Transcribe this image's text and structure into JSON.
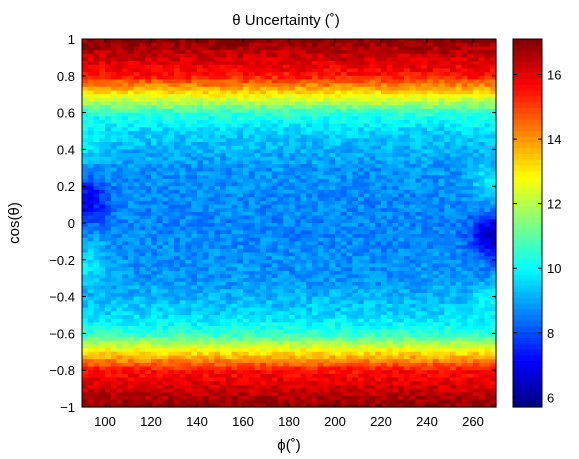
{
  "chart_data": {
    "type": "heatmap",
    "title": "θ Uncertainty (˚)",
    "xlabel": "ϕ(˚)",
    "ylabel": "cos(θ)",
    "xlim": [
      90,
      270
    ],
    "ylim": [
      -1,
      1
    ],
    "x_ticks": [
      "100",
      "120",
      "140",
      "160",
      "180",
      "200",
      "220",
      "240",
      "260"
    ],
    "y_ticks": [
      "1",
      "0.8",
      "0.6",
      "0.4",
      "0.2",
      "0",
      "−0.2",
      "−0.4",
      "−0.6",
      "−0.8",
      "−1"
    ],
    "colorbar": {
      "range": [
        5.7,
        17.1
      ],
      "ticks": [
        "16",
        "14",
        "12",
        "10",
        "8",
        "6"
      ],
      "colormap": "jet"
    },
    "grid_x_bins": 72,
    "grid_y_bins": 100,
    "profile_by_cos_theta": [
      {
        "cos_theta": 1.0,
        "value": 17.0
      },
      {
        "cos_theta": 0.9,
        "value": 16.2
      },
      {
        "cos_theta": 0.8,
        "value": 15.5
      },
      {
        "cos_theta": 0.7,
        "value": 13.0
      },
      {
        "cos_theta": 0.6,
        "value": 10.5
      },
      {
        "cos_theta": 0.5,
        "value": 9.5
      },
      {
        "cos_theta": 0.3,
        "value": 8.8
      },
      {
        "cos_theta": 0.0,
        "value": 8.6
      },
      {
        "cos_theta": -0.3,
        "value": 8.8
      },
      {
        "cos_theta": -0.5,
        "value": 9.5
      },
      {
        "cos_theta": -0.6,
        "value": 10.5
      },
      {
        "cos_theta": -0.7,
        "value": 13.0
      },
      {
        "cos_theta": -0.8,
        "value": 15.5
      },
      {
        "cos_theta": -0.9,
        "value": 16.2
      },
      {
        "cos_theta": -1.0,
        "value": 17.0
      }
    ],
    "local_features": [
      {
        "phi": 92,
        "cos_theta": 0.12,
        "value": 6.6,
        "description": "low-uncertainty spot"
      },
      {
        "phi": 268,
        "cos_theta": -0.08,
        "value": 6.1,
        "description": "low-uncertainty spot"
      },
      {
        "phi": 92,
        "cos_theta": 0.45,
        "value": 10.0,
        "description": "elevated lobe"
      },
      {
        "phi": 92,
        "cos_theta": -0.22,
        "value": 10.0,
        "description": "elevated lobe"
      },
      {
        "phi": 268,
        "cos_theta": 0.22,
        "value": 10.0,
        "description": "elevated lobe"
      },
      {
        "phi": 268,
        "cos_theta": -0.45,
        "value": 10.0,
        "description": "elevated lobe"
      }
    ]
  }
}
